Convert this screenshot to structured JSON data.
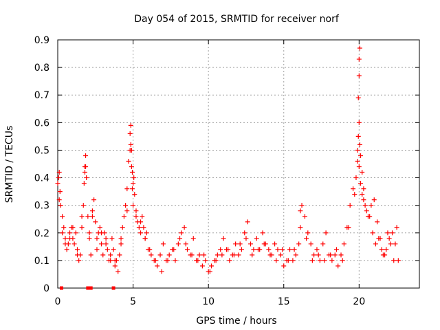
{
  "chart_data": {
    "type": "scatter",
    "title": "Day 054 of 2015, SRMTID for receiver norf",
    "xlabel": "GPS time / hours",
    "ylabel": "SRMTID / TECUs",
    "xlim": [
      0,
      24
    ],
    "ylim": [
      0,
      0.9
    ],
    "xticks": [
      "0",
      "5",
      "10",
      "15",
      "20"
    ],
    "yticks": [
      "0",
      "0.1",
      "0.2",
      "0.3",
      "0.4",
      "0.5",
      "0.6",
      "0.7",
      "0.8",
      "0.9"
    ],
    "grid": true,
    "marker": "+",
    "color": "#ff0000",
    "baseline_markers": {
      "description": "square markers on zero line",
      "x": [
        0.25,
        2.0,
        2.2,
        3.7
      ],
      "y": [
        0,
        0,
        0,
        0
      ]
    },
    "series": [
      {
        "name": "SRMTID",
        "x": [
          0.05,
          0.1,
          0.15,
          0.2,
          0.3,
          0.4,
          0.5,
          0.6,
          0.7,
          0.8,
          0.9,
          1.0,
          1.1,
          1.2,
          1.3,
          1.4,
          1.5,
          1.6,
          1.7,
          1.75,
          1.8,
          1.85,
          1.9,
          2.0,
          2.1,
          2.2,
          2.3,
          2.4,
          2.5,
          2.6,
          2.7,
          2.8,
          2.9,
          3.0,
          3.1,
          3.2,
          3.3,
          3.4,
          3.5,
          3.6,
          3.7,
          3.8,
          3.9,
          4.0,
          4.1,
          4.2,
          4.3,
          4.4,
          4.5,
          4.6,
          4.7,
          4.8,
          4.85,
          4.9,
          4.95,
          5.0,
          5.05,
          5.1,
          5.2,
          5.3,
          5.4,
          5.5,
          5.6,
          5.7,
          5.8,
          5.9,
          6.0,
          6.2,
          6.4,
          6.6,
          6.8,
          7.0,
          7.2,
          7.4,
          7.6,
          7.8,
          8.0,
          8.2,
          8.4,
          8.6,
          8.8,
          9.0,
          9.2,
          9.4,
          9.6,
          9.8,
          10.0,
          10.2,
          10.4,
          10.6,
          10.8,
          11.0,
          11.2,
          11.4,
          11.6,
          11.8,
          12.0,
          12.2,
          12.4,
          12.6,
          12.8,
          13.0,
          13.2,
          13.4,
          13.6,
          13.8,
          14.0,
          14.2,
          14.4,
          14.6,
          14.8,
          15.0,
          15.2,
          15.4,
          15.6,
          15.8,
          16.0,
          16.1,
          16.2,
          16.4,
          16.6,
          16.8,
          17.0,
          17.2,
          17.4,
          17.6,
          17.8,
          18.0,
          18.2,
          18.4,
          18.6,
          18.8,
          19.0,
          19.2,
          19.4,
          19.6,
          19.8,
          19.9,
          19.95,
          20.0,
          20.05,
          20.1,
          20.2,
          20.3,
          20.4,
          20.6,
          20.8,
          21.0,
          21.2,
          21.4,
          21.6,
          21.8,
          22.0,
          22.2,
          22.4,
          22.6,
          0.0,
          0.1,
          0.3,
          0.5,
          0.8,
          1.0,
          1.3,
          1.6,
          1.8,
          1.85,
          2.1,
          2.3,
          2.6,
          2.9,
          3.2,
          3.5,
          3.8,
          4.2,
          4.6,
          4.8,
          4.85,
          4.9,
          4.95,
          5.0,
          5.2,
          5.5,
          5.8,
          6.1,
          6.5,
          6.9,
          7.3,
          7.7,
          8.1,
          8.5,
          8.9,
          9.3,
          9.7,
          10.1,
          10.5,
          10.9,
          11.3,
          11.7,
          12.1,
          12.5,
          12.9,
          13.3,
          13.7,
          14.1,
          14.5,
          14.9,
          15.3,
          15.7,
          16.1,
          16.5,
          16.9,
          17.3,
          17.7,
          18.1,
          18.5,
          18.9,
          19.3,
          19.7,
          19.9,
          20.0,
          20.1,
          20.2,
          20.3,
          20.5,
          20.7,
          20.9,
          21.1,
          21.3,
          21.5,
          21.7,
          21.9,
          22.1,
          22.3,
          22.5,
          19.95,
          20.0,
          20.0,
          20.05
        ],
        "y": [
          0.4,
          0.42,
          0.35,
          0.3,
          0.26,
          0.22,
          0.18,
          0.14,
          0.16,
          0.2,
          0.22,
          0.18,
          0.16,
          0.2,
          0.14,
          0.1,
          0.12,
          0.22,
          0.3,
          0.38,
          0.44,
          0.48,
          0.4,
          0.26,
          0.2,
          0.12,
          0.28,
          0.32,
          0.24,
          0.18,
          0.2,
          0.22,
          0.16,
          0.12,
          0.2,
          0.18,
          0.14,
          0.1,
          0.12,
          0.18,
          0.14,
          0.08,
          0.1,
          0.06,
          0.12,
          0.18,
          0.22,
          0.26,
          0.3,
          0.36,
          0.46,
          0.56,
          0.59,
          0.5,
          0.42,
          0.38,
          0.4,
          0.34,
          0.28,
          0.24,
          0.22,
          0.2,
          0.26,
          0.22,
          0.18,
          0.2,
          0.14,
          0.12,
          0.1,
          0.08,
          0.12,
          0.16,
          0.1,
          0.12,
          0.14,
          0.1,
          0.16,
          0.2,
          0.22,
          0.14,
          0.12,
          0.18,
          0.1,
          0.12,
          0.08,
          0.1,
          0.06,
          0.08,
          0.1,
          0.12,
          0.14,
          0.18,
          0.14,
          0.1,
          0.12,
          0.16,
          0.12,
          0.14,
          0.2,
          0.24,
          0.16,
          0.14,
          0.18,
          0.14,
          0.2,
          0.16,
          0.14,
          0.12,
          0.16,
          0.14,
          0.12,
          0.08,
          0.1,
          0.14,
          0.1,
          0.12,
          0.16,
          0.22,
          0.3,
          0.26,
          0.2,
          0.16,
          0.12,
          0.14,
          0.1,
          0.16,
          0.2,
          0.12,
          0.1,
          0.12,
          0.08,
          0.12,
          0.16,
          0.22,
          0.3,
          0.36,
          0.4,
          0.46,
          0.55,
          0.6,
          0.52,
          0.48,
          0.42,
          0.36,
          0.3,
          0.26,
          0.3,
          0.32,
          0.24,
          0.18,
          0.12,
          0.14,
          0.18,
          0.2,
          0.16,
          0.1,
          0.38,
          0.32,
          0.2,
          0.16,
          0.18,
          0.22,
          0.12,
          0.26,
          0.42,
          0.44,
          0.18,
          0.26,
          0.14,
          0.2,
          0.16,
          0.1,
          0.1,
          0.16,
          0.28,
          0.5,
          0.52,
          0.44,
          0.36,
          0.3,
          0.26,
          0.24,
          0.18,
          0.14,
          0.1,
          0.06,
          0.1,
          0.14,
          0.18,
          0.16,
          0.12,
          0.1,
          0.12,
          0.06,
          0.1,
          0.12,
          0.14,
          0.12,
          0.16,
          0.18,
          0.12,
          0.14,
          0.16,
          0.12,
          0.1,
          0.14,
          0.1,
          0.14,
          0.28,
          0.18,
          0.1,
          0.12,
          0.1,
          0.12,
          0.14,
          0.1,
          0.22,
          0.34,
          0.5,
          0.44,
          0.38,
          0.34,
          0.32,
          0.28,
          0.26,
          0.2,
          0.16,
          0.18,
          0.14,
          0.12,
          0.2,
          0.16,
          0.1,
          0.22,
          0.69,
          0.77,
          0.83,
          0.87
        ]
      }
    ]
  }
}
